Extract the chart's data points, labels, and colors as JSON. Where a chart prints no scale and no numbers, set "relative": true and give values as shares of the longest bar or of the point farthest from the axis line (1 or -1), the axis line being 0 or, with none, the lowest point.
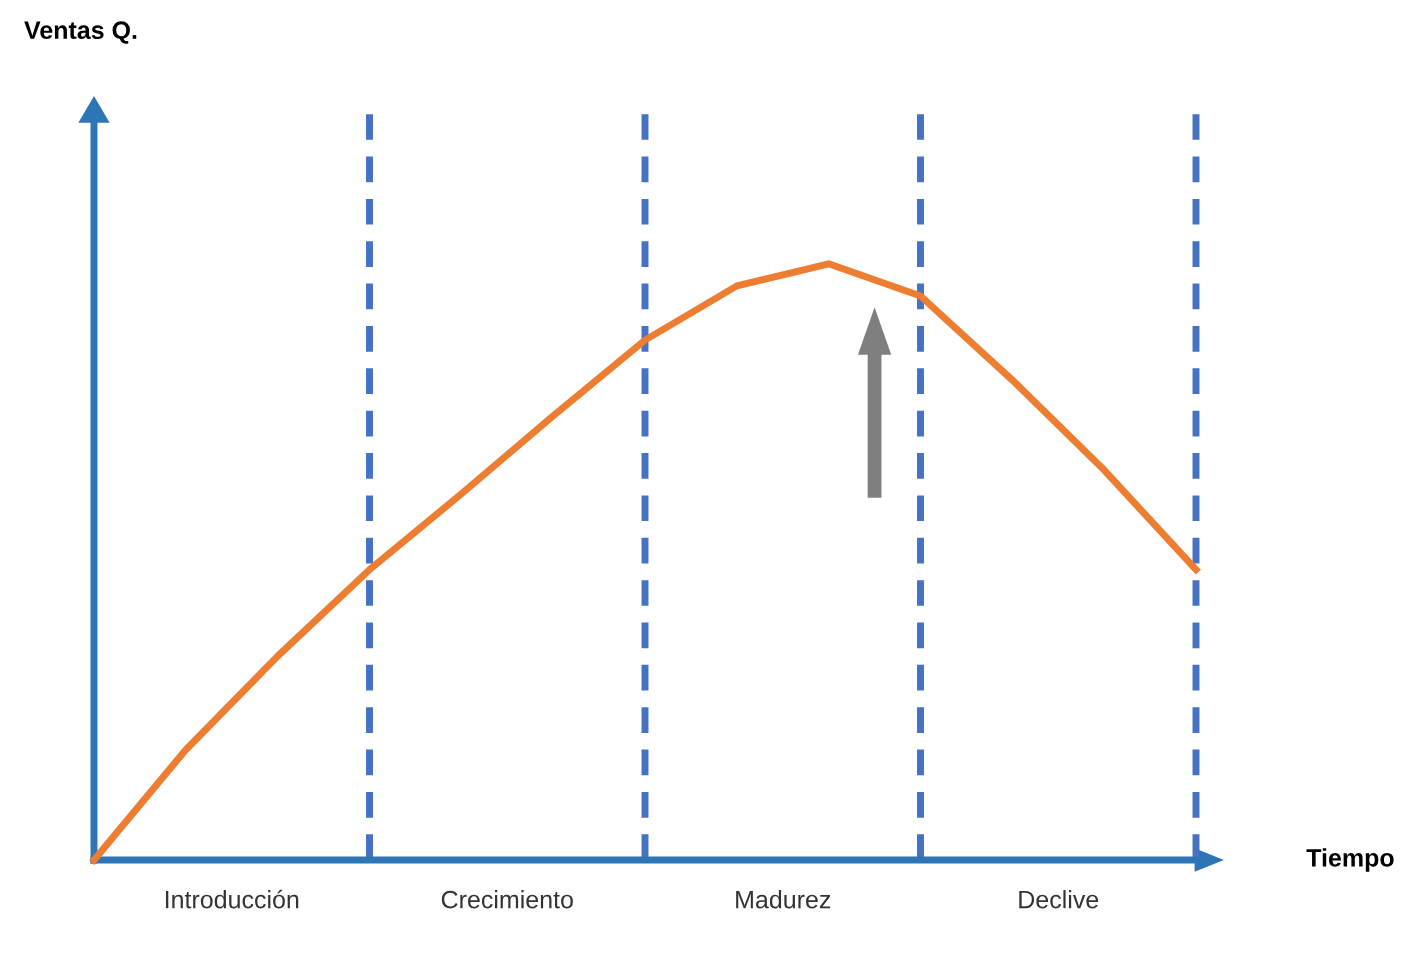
{
  "chart_data": {
    "type": "line",
    "relative": true,
    "title": "Ventas Q.",
    "xlabel": "Tiempo",
    "categories": [
      null,
      null,
      null,
      null,
      null,
      null,
      null,
      null,
      null,
      null,
      null,
      null,
      null
    ],
    "series": [
      {
        "color": "#ed7d31",
        "values": [
          0,
          0.185,
          0.342,
          0.487,
          0.614,
          0.745,
          0.872,
          0.963,
          1.0,
          0.946,
          0.805,
          0.654,
          0.487
        ]
      }
    ],
    "annotations": [
      "Introducción",
      "Crecimiento",
      "Madurez",
      "Declive"
    ],
    "grid": "x",
    "legend": false,
    "marker": "none",
    "line_style": "solid"
  }
}
